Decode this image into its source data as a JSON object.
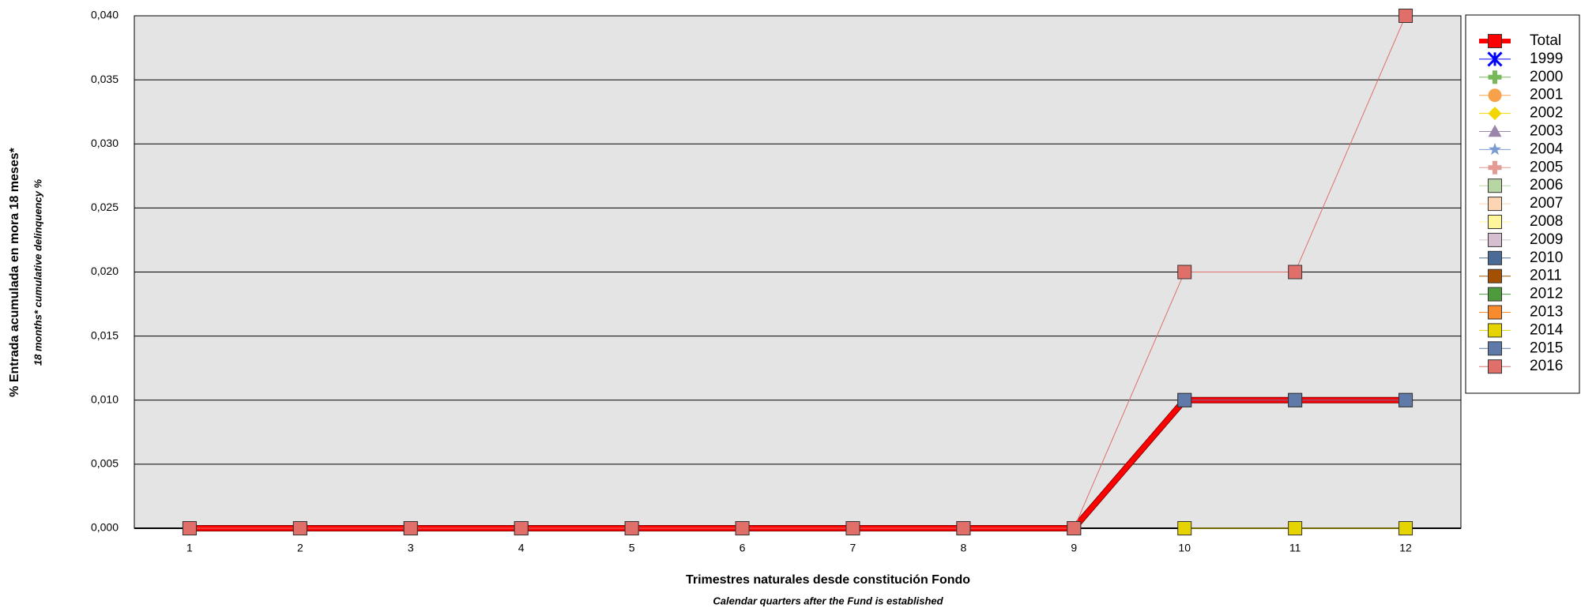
{
  "chart_data": {
    "type": "line",
    "y_title": "% Entrada acumulada en mora 18 meses*",
    "y_subtitle": "18 months* cumulative delinquency %",
    "x_title": "Trimestres naturales desde constitución Fondo",
    "x_subtitle": "Calendar quarters after the Fund is established",
    "categories": [
      "1",
      "2",
      "3",
      "4",
      "5",
      "6",
      "7",
      "8",
      "9",
      "10",
      "11",
      "12"
    ],
    "ylim": [
      0,
      0.04
    ],
    "yticks": [
      {
        "value": 0,
        "label": "0,000"
      },
      {
        "value": 0.005,
        "label": "0,005"
      },
      {
        "value": 0.01,
        "label": "0,010"
      },
      {
        "value": 0.015,
        "label": "0,015"
      },
      {
        "value": 0.02,
        "label": "0,020"
      },
      {
        "value": 0.025,
        "label": "0,025"
      },
      {
        "value": 0.03,
        "label": "0,030"
      },
      {
        "value": 0.035,
        "label": "0,035"
      },
      {
        "value": 0.04,
        "label": "0,040"
      }
    ],
    "grid": true,
    "legend": "right",
    "series": [
      {
        "name": "Total",
        "color": "#ff0000",
        "marker": "square",
        "line_width": 6,
        "values": [
          0,
          0,
          0,
          0,
          0,
          0,
          0,
          0,
          0,
          0.01,
          0.01,
          0.01
        ]
      },
      {
        "name": "1999",
        "color": "#0000ff",
        "marker": "asterisk",
        "line_width": 1,
        "values": [
          null,
          null,
          null,
          null,
          null,
          null,
          null,
          null,
          null,
          null,
          null,
          null
        ]
      },
      {
        "name": "2000",
        "color": "#77b85a",
        "marker": "plus",
        "line_width": 1,
        "values": [
          null,
          null,
          null,
          null,
          null,
          null,
          null,
          null,
          null,
          null,
          null,
          null
        ]
      },
      {
        "name": "2001",
        "color": "#f7a24a",
        "marker": "circle",
        "line_width": 1,
        "values": [
          null,
          null,
          null,
          null,
          null,
          null,
          null,
          null,
          null,
          null,
          null,
          null
        ]
      },
      {
        "name": "2002",
        "color": "#f2d600",
        "marker": "diamond",
        "line_width": 1,
        "values": [
          null,
          null,
          null,
          null,
          null,
          null,
          null,
          null,
          null,
          null,
          null,
          null
        ]
      },
      {
        "name": "2003",
        "color": "#9a86a8",
        "marker": "triangle",
        "line_width": 1,
        "values": [
          null,
          null,
          null,
          null,
          null,
          null,
          null,
          null,
          null,
          null,
          null,
          null
        ]
      },
      {
        "name": "2004",
        "color": "#7b9bd1",
        "marker": "star",
        "line_width": 1,
        "values": [
          null,
          null,
          null,
          null,
          null,
          null,
          null,
          null,
          null,
          null,
          null,
          null
        ]
      },
      {
        "name": "2005",
        "color": "#e69a94",
        "marker": "plus",
        "line_width": 1,
        "values": [
          null,
          null,
          null,
          null,
          null,
          null,
          null,
          null,
          null,
          null,
          null,
          null
        ]
      },
      {
        "name": "2006",
        "color": "#b7d6a3",
        "marker": "square",
        "line_width": 1,
        "values": [
          null,
          null,
          null,
          null,
          null,
          null,
          null,
          null,
          null,
          null,
          null,
          null
        ]
      },
      {
        "name": "2007",
        "color": "#fcd5b4",
        "marker": "square",
        "line_width": 1,
        "values": [
          null,
          null,
          null,
          null,
          null,
          null,
          null,
          null,
          null,
          null,
          null,
          null
        ]
      },
      {
        "name": "2008",
        "color": "#fff59a",
        "marker": "square",
        "line_width": 1,
        "values": [
          null,
          null,
          null,
          null,
          null,
          null,
          null,
          null,
          null,
          null,
          null,
          null
        ]
      },
      {
        "name": "2009",
        "color": "#d6c0d0",
        "marker": "square",
        "line_width": 1,
        "values": [
          null,
          null,
          null,
          null,
          null,
          null,
          null,
          null,
          null,
          null,
          null,
          null
        ]
      },
      {
        "name": "2010",
        "color": "#4c6a96",
        "marker": "square",
        "line_width": 1,
        "values": [
          null,
          null,
          null,
          null,
          null,
          null,
          null,
          null,
          null,
          null,
          null,
          null
        ]
      },
      {
        "name": "2011",
        "color": "#a35000",
        "marker": "square",
        "line_width": 1,
        "values": [
          null,
          null,
          null,
          null,
          null,
          null,
          null,
          null,
          null,
          null,
          null,
          null
        ]
      },
      {
        "name": "2012",
        "color": "#4f9a3c",
        "marker": "square",
        "line_width": 1,
        "values": [
          null,
          null,
          null,
          null,
          null,
          null,
          null,
          null,
          null,
          null,
          null,
          null
        ]
      },
      {
        "name": "2013",
        "color": "#fa8a2e",
        "marker": "square",
        "line_width": 1,
        "values": [
          null,
          null,
          null,
          null,
          null,
          null,
          null,
          null,
          null,
          null,
          null,
          null
        ]
      },
      {
        "name": "2014",
        "color": "#e5d400",
        "marker": "square",
        "line_width": 1,
        "values": [
          null,
          null,
          null,
          null,
          null,
          null,
          null,
          null,
          null,
          0,
          0,
          0
        ]
      },
      {
        "name": "2015",
        "color": "#5f7aa8",
        "marker": "square",
        "line_width": 1,
        "values": [
          null,
          null,
          null,
          null,
          null,
          null,
          null,
          null,
          null,
          0.01,
          0.01,
          0.01
        ]
      },
      {
        "name": "2016",
        "color": "#e06f6a",
        "marker": "square",
        "line_width": 1,
        "values": [
          0,
          0,
          0,
          0,
          0,
          0,
          0,
          0,
          0,
          0.02,
          0.02,
          0.04
        ]
      }
    ]
  }
}
